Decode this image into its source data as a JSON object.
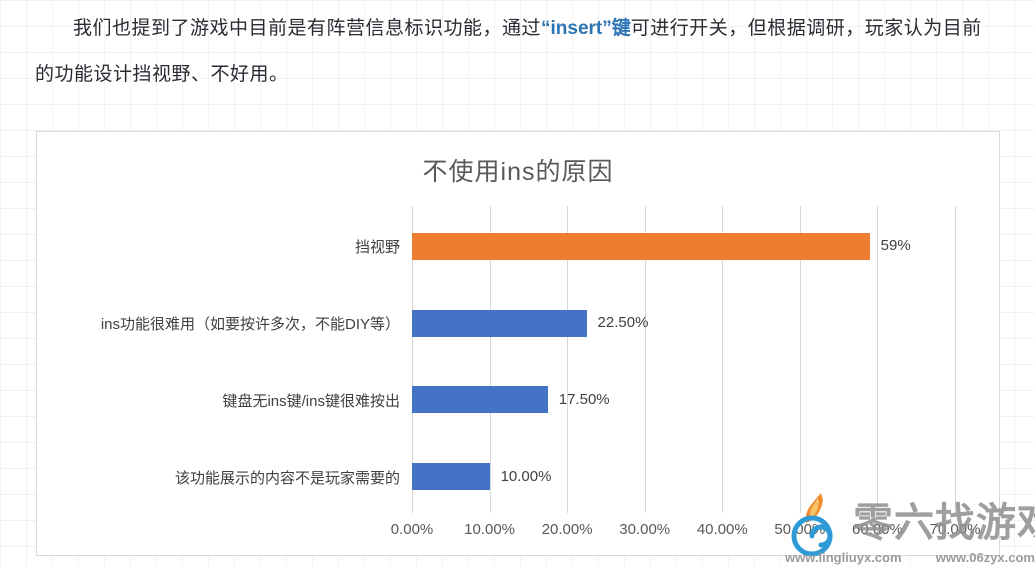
{
  "page": {
    "paragraph": {
      "before": "我们也提到了游戏中目前是有阵营信息标识功能，通过",
      "highlight": "“insert”键",
      "after": "可进行开关，但根据调研，玩家认为目前的功能设计挡视野、不好用。",
      "highlight_color": "#2E75B6"
    }
  },
  "chart_data": {
    "type": "bar",
    "orientation": "horizontal",
    "title": "不使用ins的原因",
    "categories": [
      "挡视野",
      "ins功能很难用（如要按许多次，不能DIY等）",
      "键盘无ins键/ins键很难按出",
      "该功能展示的内容不是玩家需要的"
    ],
    "values": [
      59,
      22.5,
      17.5,
      10
    ],
    "value_labels": [
      "59%",
      "22.50%",
      "17.50%",
      "10.00%"
    ],
    "bar_colors": [
      "#ED7D31",
      "#4472C4",
      "#4472C4",
      "#4472C4"
    ],
    "x_ticks": [
      "0.00%",
      "10.00%",
      "20.00%",
      "30.00%",
      "40.00%",
      "50.00%",
      "60.00%",
      "70.00%"
    ],
    "xlim": [
      0,
      70
    ],
    "grid": true,
    "legend": "none",
    "colors": {
      "highlight_bar": "#ED7D31",
      "default_bar": "#4472C4",
      "gridline": "#d6d6d6",
      "title_text": "#595959"
    }
  },
  "watermark": {
    "brand": "零六找游戏",
    "urls": [
      "www.lingliuyx.com",
      "www.06zyx.com"
    ]
  }
}
